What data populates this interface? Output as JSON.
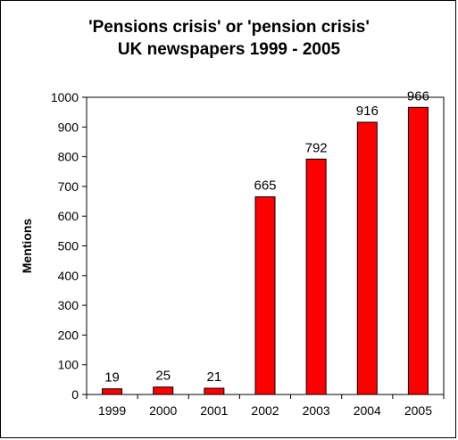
{
  "chart_data": {
    "type": "bar",
    "title_line1": "'Pensions crisis' or 'pension crisis'",
    "title_line2": "UK newspapers 1999 - 2005",
    "xlabel": "",
    "ylabel": "Mentions",
    "categories": [
      "1999",
      "2000",
      "2001",
      "2002",
      "2003",
      "2004",
      "2005"
    ],
    "values": [
      19,
      25,
      21,
      665,
      792,
      916,
      966
    ],
    "ylim": [
      0,
      1000
    ],
    "yticks": [
      0,
      100,
      200,
      300,
      400,
      500,
      600,
      700,
      800,
      900,
      1000
    ],
    "bar_color": "#ff0000",
    "data_labels": true,
    "grid": false,
    "legend": false
  }
}
